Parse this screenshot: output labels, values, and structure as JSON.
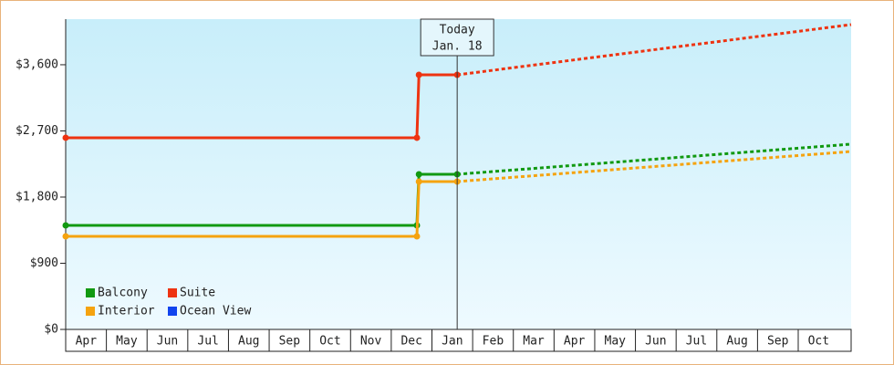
{
  "chart_data": {
    "type": "line",
    "annotation": {
      "x": 9.62,
      "line1": "Today",
      "line2": "Jan. 18"
    },
    "xlim": [
      0,
      19.3
    ],
    "xticks": [
      {
        "value": 0,
        "label": "Apr"
      },
      {
        "value": 1,
        "label": "May"
      },
      {
        "value": 2,
        "label": "Jun"
      },
      {
        "value": 3,
        "label": "Jul"
      },
      {
        "value": 4,
        "label": "Aug"
      },
      {
        "value": 5,
        "label": "Sep"
      },
      {
        "value": 6,
        "label": "Oct"
      },
      {
        "value": 7,
        "label": "Nov"
      },
      {
        "value": 8,
        "label": "Dec"
      },
      {
        "value": 9,
        "label": "Jan"
      },
      {
        "value": 10,
        "label": "Feb"
      },
      {
        "value": 11,
        "label": "Mar"
      },
      {
        "value": 12,
        "label": "Apr"
      },
      {
        "value": 13,
        "label": "May"
      },
      {
        "value": 14,
        "label": "Jun"
      },
      {
        "value": 15,
        "label": "Jul"
      },
      {
        "value": 16,
        "label": "Aug"
      },
      {
        "value": 17,
        "label": "Sep"
      },
      {
        "value": 18,
        "label": "Oct"
      }
    ],
    "ylim": [
      0,
      4220
    ],
    "yticks": [
      {
        "value": 0,
        "label": "$0"
      },
      {
        "value": 900,
        "label": "$900"
      },
      {
        "value": 1800,
        "label": "$1,800"
      },
      {
        "value": 2700,
        "label": "$2,700"
      },
      {
        "value": 3600,
        "label": "$3,600"
      }
    ],
    "series": [
      {
        "name": "Balcony",
        "color": "#119911",
        "x": [
          0,
          8.63,
          8.68,
          9.62
        ],
        "values": [
          1415,
          1415,
          2110,
          2110
        ],
        "forecast_x": [
          9.62,
          19.3
        ],
        "forecast_values": [
          2110,
          2520
        ]
      },
      {
        "name": "Suite",
        "color": "#ee3311",
        "x": [
          0,
          8.63,
          8.68,
          9.62
        ],
        "values": [
          2607,
          2607,
          3463,
          3463
        ],
        "forecast_x": [
          9.62,
          19.3
        ],
        "forecast_values": [
          3463,
          4146
        ]
      },
      {
        "name": "Interior",
        "color": "#f5a30f",
        "x": [
          0,
          8.63,
          8.68,
          9.62
        ],
        "values": [
          1266,
          1266,
          2011,
          2011
        ],
        "forecast_x": [
          9.62,
          19.3
        ],
        "forecast_values": [
          2011,
          2420
        ]
      },
      {
        "name": "Ocean View",
        "color": "#1144ee",
        "x": [],
        "values": [],
        "forecast_x": [],
        "forecast_values": []
      }
    ]
  }
}
